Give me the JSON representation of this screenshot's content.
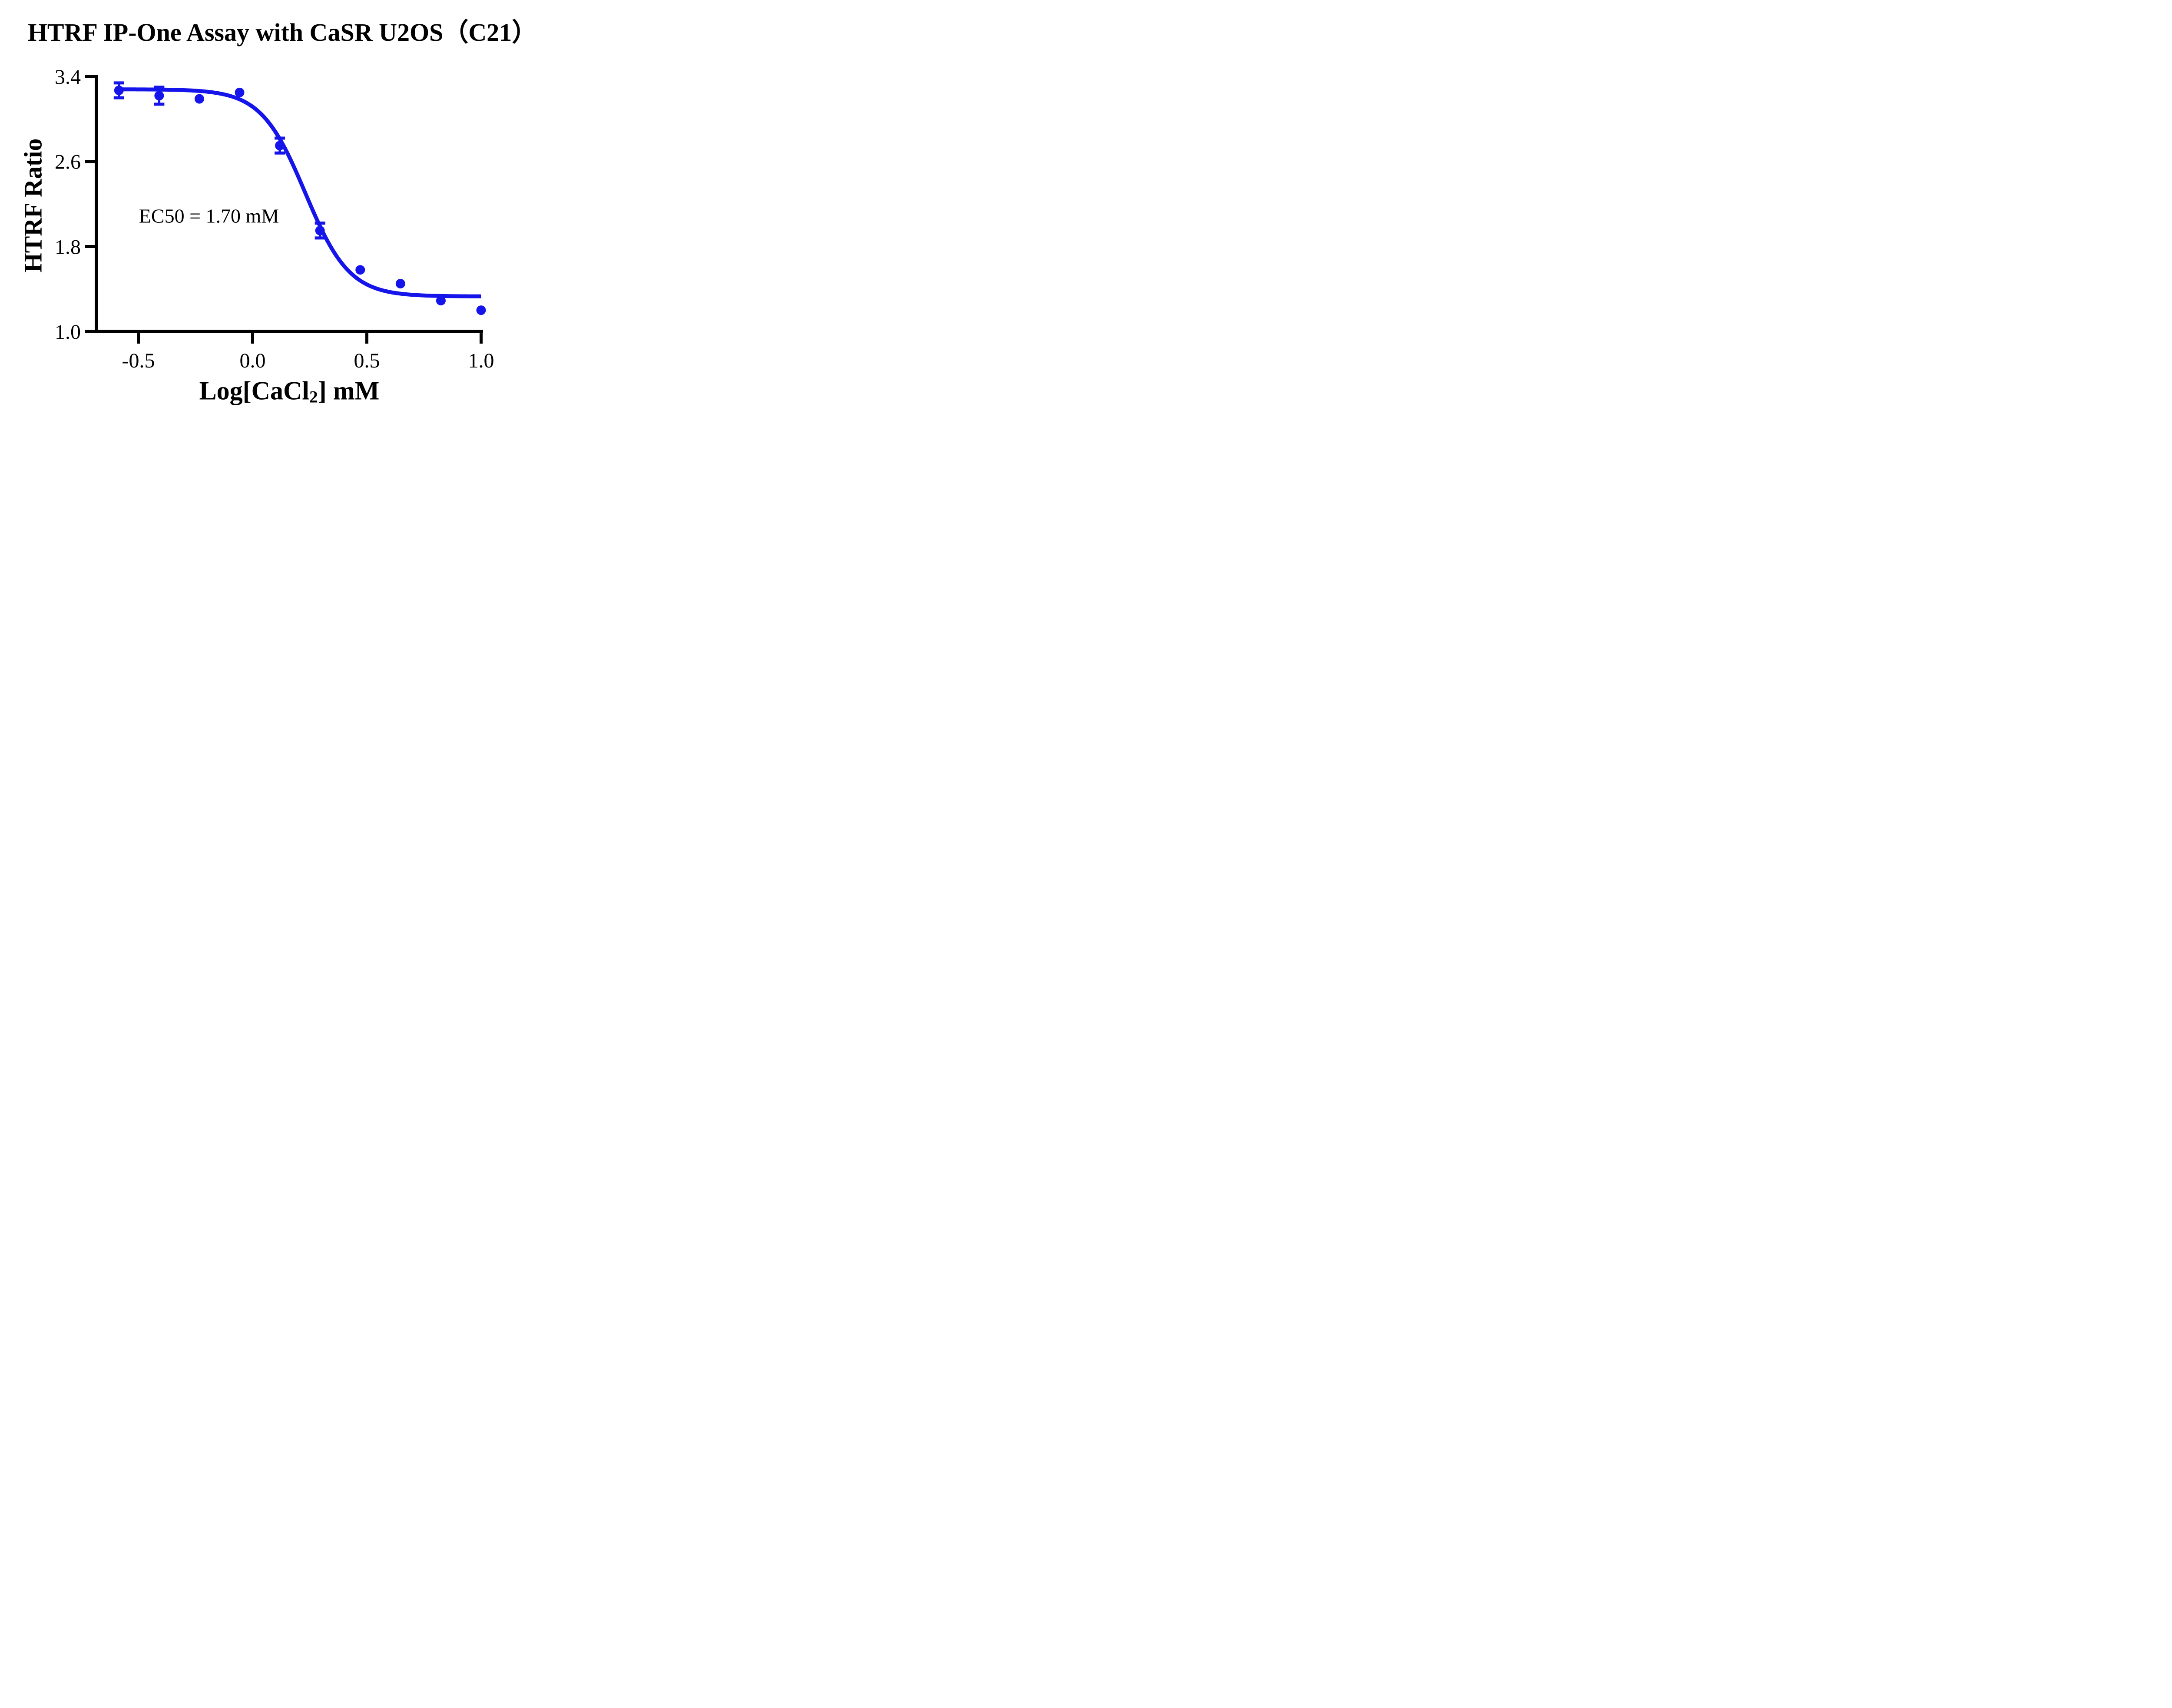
{
  "chart_data": {
    "type": "scatter",
    "title": "HTRF IP-One Assay with CaSR U2OS（C21）",
    "ylabel": "HTRF Ratio",
    "xlabel_parts": {
      "pre": "Log[CaCl",
      "sub": "2",
      "post": "] mM"
    },
    "xlim": [
      -0.684,
      1.007
    ],
    "ylim": [
      1.0,
      3.4
    ],
    "grid": false,
    "legend": "none",
    "x_ticks": {
      "values": [
        -0.5,
        0.0,
        0.5,
        1.0
      ],
      "labels": [
        "-0.5",
        "0.0",
        "0.5",
        "1.0"
      ]
    },
    "y_ticks": {
      "values": [
        3.4,
        2.6,
        1.8,
        1.0
      ],
      "labels": [
        "3.4",
        "2.6",
        "1.8",
        "1.0"
      ]
    },
    "series": [
      {
        "name": "CaSR U2OS (C21)",
        "marker": "circle",
        "color": "#1414eb",
        "points": [
          {
            "x": -0.585,
            "y": 3.27,
            "yerr": 0.07
          },
          {
            "x": -0.409,
            "y": 3.22,
            "yerr": 0.08
          },
          {
            "x": -0.233,
            "y": 3.19,
            "yerr": 0
          },
          {
            "x": -0.057,
            "y": 3.25,
            "yerr": 0
          },
          {
            "x": 0.119,
            "y": 2.75,
            "yerr": 0.07
          },
          {
            "x": 0.295,
            "y": 1.95,
            "yerr": 0.07
          },
          {
            "x": 0.471,
            "y": 1.58,
            "yerr": 0
          },
          {
            "x": 0.647,
            "y": 1.45,
            "yerr": 0
          },
          {
            "x": 0.824,
            "y": 1.29,
            "yerr": 0
          },
          {
            "x": 1.0,
            "y": 1.2,
            "yerr": 0
          }
        ]
      }
    ],
    "fit_curve": {
      "model": "4PL",
      "top": 3.28,
      "bottom": 1.33,
      "log_ec50": 0.2304,
      "hill_slope": -4.5,
      "x_start": -0.585,
      "x_end": 1.0,
      "color": "#1414eb"
    },
    "annotation": {
      "text": "EC50 = 1.70 mM",
      "ec50_mM": 1.7
    },
    "axis_color": "#000000"
  }
}
